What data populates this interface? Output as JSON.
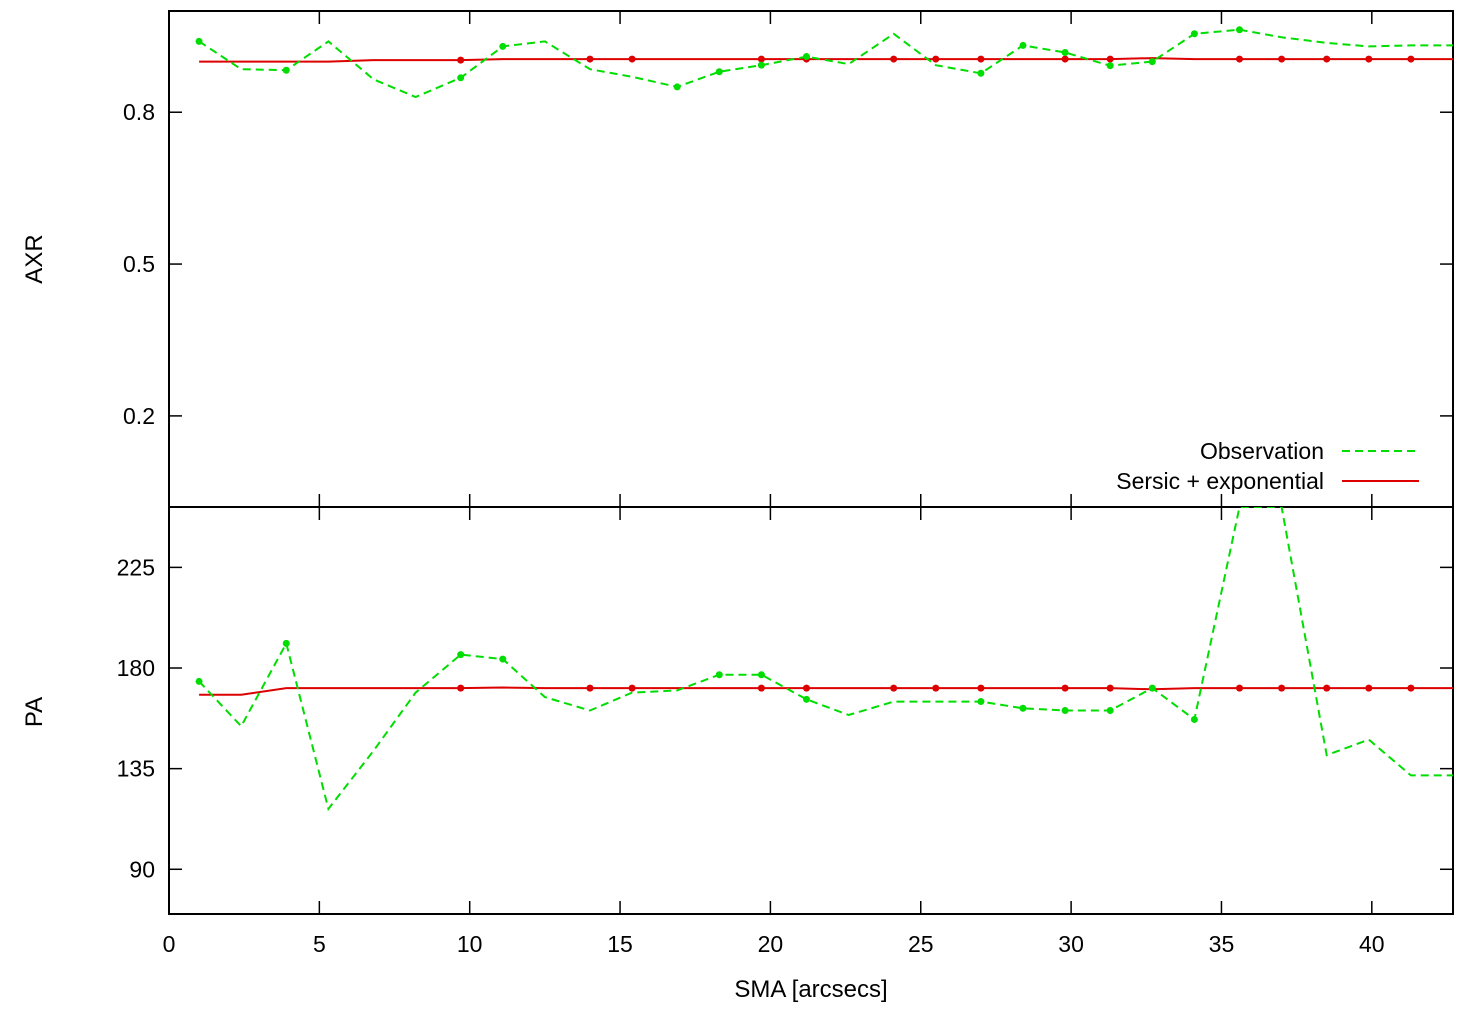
{
  "chart_data": [
    {
      "type": "line",
      "ylabel": "AXR",
      "xlim": [
        0,
        42.7
      ],
      "ylim": [
        0.02,
        1.0
      ],
      "yticks": [
        0.2,
        0.5,
        0.8
      ],
      "ytick_labels": [
        "0.2",
        "0.5",
        "0.8"
      ],
      "legend": {
        "placement": "bottom-right"
      },
      "series": [
        {
          "name": "Observation",
          "style": "dashed",
          "color": "#00dd00",
          "x": [
            1.0,
            2.4,
            3.9,
            5.3,
            6.8,
            8.2,
            9.7,
            11.1,
            12.5,
            14.0,
            15.4,
            16.9,
            18.3,
            19.7,
            21.2,
            22.6,
            24.1,
            25.5,
            27.0,
            28.4,
            29.8,
            31.3,
            32.7,
            34.1,
            35.6,
            37.0,
            38.5,
            39.9,
            41.3,
            42.7
          ],
          "y": [
            0.94,
            0.885,
            0.883,
            0.94,
            0.865,
            0.83,
            0.868,
            0.93,
            0.94,
            0.885,
            0.87,
            0.85,
            0.88,
            0.893,
            0.91,
            0.895,
            0.955,
            0.893,
            0.877,
            0.932,
            0.918,
            0.892,
            0.9,
            0.955,
            0.963,
            0.948,
            0.937,
            0.93,
            0.932,
            0.932
          ],
          "markers_x": [
            1.0,
            3.9,
            9.7,
            11.1,
            16.9,
            18.3,
            19.7,
            21.2,
            27.0,
            28.4,
            29.8,
            31.3,
            32.7,
            34.1,
            35.6
          ],
          "markers_y": [
            0.94,
            0.883,
            0.868,
            0.93,
            0.85,
            0.88,
            0.893,
            0.91,
            0.877,
            0.932,
            0.918,
            0.892,
            0.9,
            0.955,
            0.963
          ]
        },
        {
          "name": "Sersic + exponential",
          "style": "solid",
          "color": "#dd0000",
          "x": [
            1.0,
            2.4,
            3.9,
            5.3,
            6.8,
            8.2,
            9.7,
            11.1,
            12.5,
            14.0,
            15.4,
            16.9,
            18.3,
            19.7,
            21.2,
            22.6,
            24.1,
            25.5,
            27.0,
            28.4,
            29.8,
            31.3,
            32.7,
            34.1,
            35.6,
            37.0,
            38.5,
            39.9,
            41.3,
            42.7
          ],
          "y": [
            0.9,
            0.9,
            0.9,
            0.9,
            0.903,
            0.903,
            0.903,
            0.905,
            0.905,
            0.905,
            0.905,
            0.905,
            0.905,
            0.905,
            0.905,
            0.905,
            0.905,
            0.905,
            0.905,
            0.905,
            0.905,
            0.905,
            0.907,
            0.905,
            0.905,
            0.905,
            0.905,
            0.905,
            0.905,
            0.905
          ],
          "markers_x": [
            9.7,
            14.0,
            15.4,
            19.7,
            21.2,
            24.1,
            25.5,
            27.0,
            29.8,
            31.3,
            35.6,
            37.0,
            38.5,
            39.9,
            41.3
          ],
          "markers_y": [
            0.903,
            0.905,
            0.905,
            0.905,
            0.905,
            0.905,
            0.905,
            0.905,
            0.905,
            0.905,
            0.905,
            0.905,
            0.905,
            0.905,
            0.905
          ]
        }
      ]
    },
    {
      "type": "line",
      "xlabel": "SMA [arcsecs]",
      "ylabel": "PA",
      "xlim": [
        0,
        42.7
      ],
      "ylim": [
        70,
        252
      ],
      "xticks": [
        0,
        5,
        10,
        15,
        20,
        25,
        30,
        35,
        40
      ],
      "xtick_labels": [
        "0",
        "5",
        "10",
        "15",
        "20",
        "25",
        "30",
        "35",
        "40"
      ],
      "yticks": [
        90,
        135,
        180,
        225
      ],
      "ytick_labels": [
        "90",
        "135",
        "180",
        "225"
      ],
      "series": [
        {
          "name": "Observation",
          "style": "dashed",
          "color": "#00dd00",
          "x": [
            1.0,
            2.4,
            3.9,
            5.3,
            6.8,
            8.2,
            9.7,
            11.1,
            12.5,
            14.0,
            15.4,
            16.9,
            18.3,
            19.7,
            21.2,
            22.6,
            24.1,
            25.5,
            27.0,
            28.4,
            29.8,
            31.3,
            32.7,
            34.1,
            35.6,
            37.0,
            38.5,
            39.9,
            41.3,
            42.7
          ],
          "y": [
            174,
            154,
            191,
            117,
            143,
            169,
            186,
            184,
            167,
            161,
            169,
            170,
            177,
            177,
            166,
            159,
            165,
            165,
            165,
            162,
            161,
            161,
            171,
            157,
            252,
            252,
            141,
            148,
            132,
            132
          ],
          "markers_x": [
            1.0,
            3.9,
            9.7,
            11.1,
            18.3,
            19.7,
            21.2,
            27.0,
            28.4,
            29.8,
            31.3,
            32.7,
            34.1
          ],
          "markers_y": [
            174,
            191,
            186,
            184,
            177,
            177,
            166,
            165,
            162,
            161,
            161,
            171,
            157
          ]
        },
        {
          "name": "Sersic + exponential",
          "style": "solid",
          "color": "#dd0000",
          "x": [
            1.0,
            2.4,
            3.9,
            5.3,
            6.8,
            8.2,
            9.7,
            11.1,
            12.5,
            14.0,
            15.4,
            16.9,
            18.3,
            19.7,
            21.2,
            22.6,
            24.1,
            25.5,
            27.0,
            28.4,
            29.8,
            31.3,
            32.7,
            34.1,
            35.6,
            37.0,
            38.5,
            39.9,
            41.3,
            42.7
          ],
          "y": [
            168,
            168,
            171,
            171,
            171,
            171,
            171,
            171.3,
            171,
            171,
            171,
            171,
            171,
            171,
            171,
            171,
            171,
            171,
            171,
            171,
            171,
            171,
            170.5,
            171,
            171,
            171,
            171,
            171,
            171,
            171
          ],
          "markers_x": [
            9.7,
            14.0,
            15.4,
            19.7,
            21.2,
            24.1,
            25.5,
            27.0,
            29.8,
            31.3,
            35.6,
            37.0,
            38.5,
            39.9,
            41.3
          ],
          "markers_y": [
            171,
            171,
            171,
            171,
            171,
            171,
            171,
            171,
            171,
            171,
            171,
            171,
            171,
            171,
            171
          ]
        }
      ]
    }
  ]
}
